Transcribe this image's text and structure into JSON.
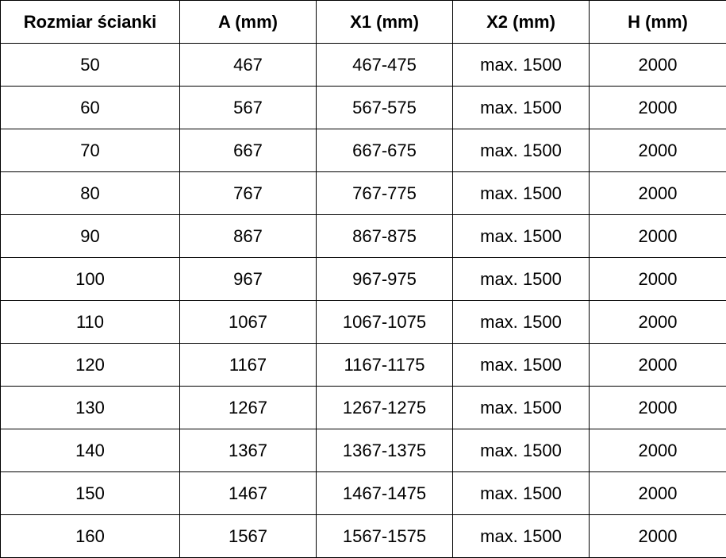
{
  "table": {
    "headers": [
      "Rozmiar ścianki",
      "A (mm)",
      "X1 (mm)",
      "X2 (mm)",
      "H (mm)"
    ],
    "rows": [
      [
        "50",
        "467",
        "467-475",
        "max. 1500",
        "2000"
      ],
      [
        "60",
        "567",
        "567-575",
        "max. 1500",
        "2000"
      ],
      [
        "70",
        "667",
        "667-675",
        "max. 1500",
        "2000"
      ],
      [
        "80",
        "767",
        "767-775",
        "max. 1500",
        "2000"
      ],
      [
        "90",
        "867",
        "867-875",
        "max. 1500",
        "2000"
      ],
      [
        "100",
        "967",
        "967-975",
        "max. 1500",
        "2000"
      ],
      [
        "110",
        "1067",
        "1067-1075",
        "max. 1500",
        "2000"
      ],
      [
        "120",
        "1167",
        "1167-1175",
        "max. 1500",
        "2000"
      ],
      [
        "130",
        "1267",
        "1267-1275",
        "max. 1500",
        "2000"
      ],
      [
        "140",
        "1367",
        "1367-1375",
        "max. 1500",
        "2000"
      ],
      [
        "150",
        "1467",
        "1467-1475",
        "max. 1500",
        "2000"
      ],
      [
        "160",
        "1567",
        "1567-1575",
        "max. 1500",
        "2000"
      ]
    ]
  }
}
